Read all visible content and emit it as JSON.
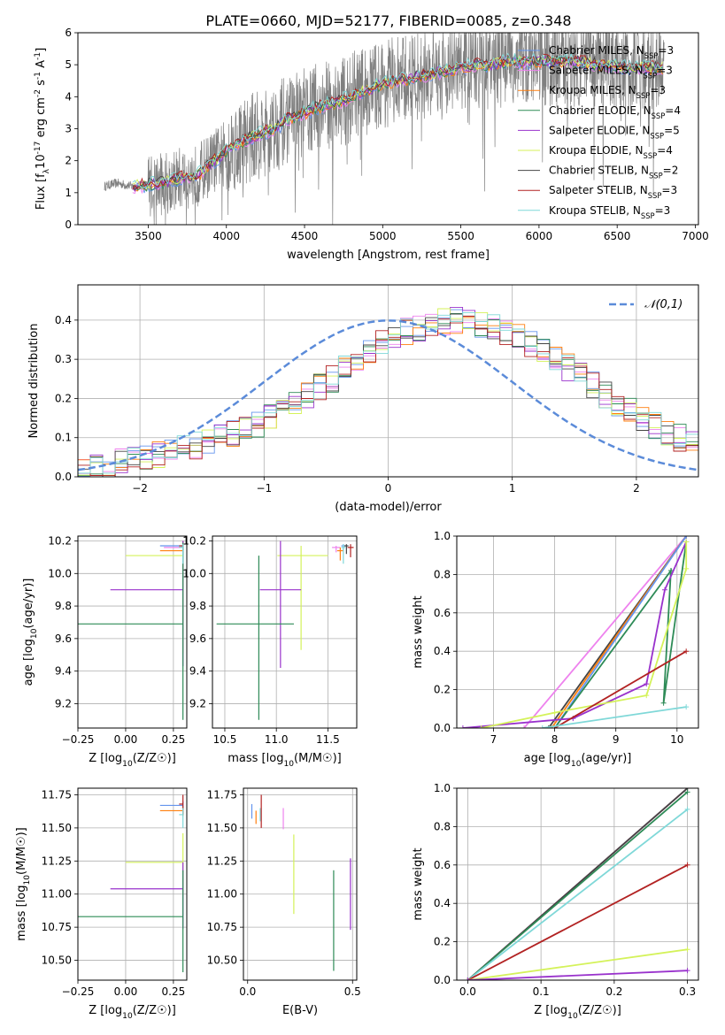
{
  "figure_title": "PLATE=0660, MJD=52177, FIBERID=0085, z=0.348",
  "colors": {
    "Chabrier MILES": "#6495ed",
    "Salpeter MILES": "#ee82ee",
    "Kroupa MILES": "#ff7f0e",
    "Chabrier ELODIE": "#2e8b57",
    "Salpeter ELODIE": "#9932cc",
    "Kroupa ELODIE": "#d4f25a",
    "Chabrier STELIB": "#444444",
    "Salpeter STELIB": "#b22222",
    "Kroupa STELIB": "#7fd8d8",
    "normal": "#5b8bd9"
  },
  "chart_data": [
    {
      "id": "spectrum",
      "type": "line",
      "xlabel": "wavelength [Angstrom, rest frame]",
      "ylabel": "Flux [f_λ10^-17 erg cm^-2 s^-1 A^-1]",
      "xlim": [
        3050,
        7020
      ],
      "ylim": [
        0,
        6
      ],
      "xticks": [
        3500,
        4000,
        4500,
        5000,
        5500,
        6000,
        6500,
        7000
      ],
      "yticks": [
        0,
        1,
        2,
        3,
        4,
        5,
        6
      ],
      "legend": "top-right",
      "legend_entries": [
        {
          "name": "Chabrier MILES, N_SSP=3",
          "lib": "Chabrier MILES"
        },
        {
          "name": "Salpeter MILES, N_SSP=3",
          "lib": "Salpeter MILES"
        },
        {
          "name": "Kroupa MILES, N_SSP=3",
          "lib": "Kroupa MILES"
        },
        {
          "name": "Chabrier ELODIE, N_SSP=4",
          "lib": "Chabrier ELODIE"
        },
        {
          "name": "Salpeter ELODIE, N_SSP=5",
          "lib": "Salpeter ELODIE"
        },
        {
          "name": "Kroupa ELODIE, N_SSP=4",
          "lib": "Kroupa ELODIE"
        },
        {
          "name": "Chabrier STELIB, N_SSP=2",
          "lib": "Chabrier STELIB"
        },
        {
          "name": "Salpeter STELIB, N_SSP=3",
          "lib": "Salpeter STELIB"
        },
        {
          "name": "Kroupa STELIB, N_SSP=3",
          "lib": "Kroupa STELIB"
        }
      ],
      "continuum": {
        "x": [
          3220,
          3300,
          3400,
          3500,
          3600,
          3700,
          3800,
          3900,
          4000,
          4100,
          4200,
          4300,
          4400,
          4500,
          4600,
          4700,
          4800,
          4900,
          5000,
          5100,
          5200,
          5300,
          5400,
          5500,
          5600,
          5700,
          5800,
          5900,
          6000,
          6200,
          6400,
          6600,
          6800
        ],
        "y": [
          1.2,
          1.3,
          1.2,
          1.25,
          1.3,
          1.45,
          1.5,
          1.9,
          2.3,
          2.6,
          2.8,
          3.0,
          3.3,
          3.5,
          3.7,
          3.8,
          4.0,
          4.2,
          4.4,
          4.5,
          4.6,
          4.7,
          4.8,
          4.9,
          5.0,
          5.0,
          5.1,
          5.1,
          5.1,
          5.1,
          5.0,
          4.9,
          4.9
        ]
      }
    },
    {
      "id": "residuals",
      "type": "step",
      "xlabel": "(data-model)/error",
      "ylabel": "Normed distribution",
      "xlim": [
        -2.5,
        2.5
      ],
      "ylim": [
        0,
        0.49
      ],
      "xticks": [
        -2,
        -1,
        0,
        1,
        2
      ],
      "yticks": [
        0.0,
        0.1,
        0.2,
        0.3,
        0.4
      ],
      "legend": "top-right",
      "legend_entries": [
        {
          "name": "𝒩(0,1)",
          "lib": "normal"
        }
      ],
      "bin_edges_start": -2.5,
      "bin_width": 0.1,
      "histogram_base": [
        0.02,
        0.025,
        0.03,
        0.04,
        0.045,
        0.05,
        0.055,
        0.06,
        0.07,
        0.08,
        0.09,
        0.1,
        0.11,
        0.12,
        0.135,
        0.15,
        0.17,
        0.19,
        0.21,
        0.23,
        0.25,
        0.275,
        0.3,
        0.32,
        0.34,
        0.355,
        0.37,
        0.38,
        0.39,
        0.395,
        0.4,
        0.395,
        0.39,
        0.38,
        0.37,
        0.355,
        0.34,
        0.32,
        0.3,
        0.28,
        0.26,
        0.235,
        0.21,
        0.19,
        0.17,
        0.15,
        0.13,
        0.115,
        0.1,
        0.09
      ],
      "gaussian": {
        "mean": 0,
        "sigma": 1
      }
    },
    {
      "id": "age_vs_Z",
      "type": "errorbar",
      "xlabel": "Z [log10(Z/Z☉)]",
      "ylabel": "age  [log10(age/yr)]",
      "xlim": [
        -0.25,
        0.32
      ],
      "ylim": [
        9.05,
        10.23
      ],
      "xticks": [
        -0.25,
        0.0,
        0.25
      ],
      "yticks": [
        9.2,
        9.4,
        9.6,
        9.8,
        10.0,
        10.2
      ],
      "points": [
        {
          "lib": "Chabrier MILES",
          "x": 0.3,
          "xerr": [
            0.12,
            0.0
          ],
          "y": 10.17,
          "yerr": [
            0.03,
            0.01
          ]
        },
        {
          "lib": "Salpeter MILES",
          "x": 0.3,
          "xerr": [
            0.1,
            0.0
          ],
          "y": 10.16,
          "yerr": [
            0.03,
            0.01
          ]
        },
        {
          "lib": "Kroupa MILES",
          "x": 0.3,
          "xerr": [
            0.12,
            0.0
          ],
          "y": 10.14,
          "yerr": [
            0.04,
            0.02
          ]
        },
        {
          "lib": "Salpeter STELIB",
          "x": 0.3,
          "xerr": [
            0.02,
            0.0
          ],
          "y": 10.17,
          "yerr": [
            0.08,
            0.03
          ]
        },
        {
          "lib": "Chabrier STELIB",
          "x": 0.3,
          "xerr": [
            0.02,
            0.0
          ],
          "y": 10.16,
          "yerr": [
            0.05,
            0.02
          ]
        },
        {
          "lib": "Kroupa ELODIE",
          "x": 0.3,
          "xerr": [
            0.3,
            0.0
          ],
          "y": 10.11,
          "yerr": [
            0.6,
            0.07
          ]
        },
        {
          "lib": "Salpeter ELODIE",
          "x": 0.3,
          "xerr": [
            0.38,
            0.0
          ],
          "y": 9.9,
          "yerr": [
            0.47,
            0.3
          ]
        },
        {
          "lib": "Chabrier ELODIE",
          "x": 0.3,
          "xerr": [
            0.55,
            0.0
          ],
          "y": 9.69,
          "yerr": [
            0.59,
            0.5
          ]
        },
        {
          "lib": "Kroupa STELIB",
          "x": 0.3,
          "xerr": [
            0.02,
            0.0
          ],
          "y": 10.16,
          "yerr": [
            0.1,
            0.02
          ]
        }
      ]
    },
    {
      "id": "age_vs_mass",
      "type": "errorbar",
      "xlabel": "mass [log10(M/M☉)]",
      "ylabel": "",
      "xlim": [
        10.38,
        11.78
      ],
      "ylim": [
        9.05,
        10.23
      ],
      "xticks": [
        10.5,
        11.0,
        11.5
      ],
      "yticks": [
        9.2,
        9.4,
        9.6,
        9.8,
        10.0,
        10.2
      ],
      "points": [
        {
          "lib": "Chabrier MILES",
          "x": 11.65,
          "xerr": [
            0.02,
            0.02
          ],
          "y": 10.17,
          "yerr": [
            0.03,
            0.01
          ]
        },
        {
          "lib": "Salpeter MILES",
          "x": 11.58,
          "xerr": [
            0.04,
            0.04
          ],
          "y": 10.16,
          "yerr": [
            0.03,
            0.01
          ]
        },
        {
          "lib": "Kroupa MILES",
          "x": 11.62,
          "xerr": [
            0.03,
            0.03
          ],
          "y": 10.14,
          "yerr": [
            0.06,
            0.02
          ]
        },
        {
          "lib": "Salpeter STELIB",
          "x": 11.72,
          "xerr": [
            0.03,
            0.03
          ],
          "y": 10.16,
          "yerr": [
            0.06,
            0.02
          ]
        },
        {
          "lib": "Chabrier STELIB",
          "x": 11.68,
          "xerr": [
            0.02,
            0.02
          ],
          "y": 10.17,
          "yerr": [
            0.05,
            0.01
          ]
        },
        {
          "lib": "Kroupa ELODIE",
          "x": 11.24,
          "xerr": [
            0.23,
            0.26
          ],
          "y": 10.11,
          "yerr": [
            0.58,
            0.06
          ]
        },
        {
          "lib": "Salpeter ELODIE",
          "x": 11.04,
          "xerr": [
            0.2,
            0.2
          ],
          "y": 9.9,
          "yerr": [
            0.48,
            0.3
          ]
        },
        {
          "lib": "Chabrier ELODIE",
          "x": 10.83,
          "xerr": [
            0.41,
            0.34
          ],
          "y": 9.69,
          "yerr": [
            0.59,
            0.42
          ]
        },
        {
          "lib": "Kroupa STELIB",
          "x": 11.65,
          "xerr": [
            0.02,
            0.02
          ],
          "y": 10.16,
          "yerr": [
            0.1,
            0.02
          ]
        }
      ]
    },
    {
      "id": "massweight_vs_age",
      "type": "line",
      "xlabel": "age  [log10(age/yr)]",
      "ylabel": "mass weight",
      "xlim": [
        6.4,
        10.35
      ],
      "ylim": [
        0,
        1.0
      ],
      "xticks": [
        7,
        8,
        9,
        10
      ],
      "yticks": [
        0.0,
        0.2,
        0.4,
        0.6,
        0.8,
        1.0
      ],
      "series": [
        {
          "lib": "Salpeter MILES",
          "x": [
            7.5,
            10.15
          ],
          "y": [
            0.0,
            1.0
          ]
        },
        {
          "lib": "Chabrier STELIB",
          "x": [
            7.9,
            10.15
          ],
          "y": [
            0.0,
            1.0
          ]
        },
        {
          "lib": "Kroupa MILES",
          "x": [
            7.95,
            10.15
          ],
          "y": [
            0.0,
            1.0
          ]
        },
        {
          "lib": "Chabrier MILES",
          "x": [
            8.0,
            10.15
          ],
          "y": [
            0.0,
            1.0
          ]
        },
        {
          "lib": "Chabrier ELODIE",
          "x": [
            8.0,
            9.9,
            9.78,
            10.15
          ],
          "y": [
            0.0,
            0.82,
            0.13,
            0.97
          ]
        },
        {
          "lib": "Salpeter ELODIE",
          "x": [
            6.5,
            8.3,
            9.5,
            9.8,
            10.15
          ],
          "y": [
            0.0,
            0.05,
            0.23,
            0.72,
            0.97
          ]
        },
        {
          "lib": "Kroupa ELODIE",
          "x": [
            6.8,
            8.0,
            9.5,
            10.15,
            10.15
          ],
          "y": [
            0.0,
            0.08,
            0.17,
            0.83,
            0.97
          ]
        },
        {
          "lib": "Salpeter STELIB",
          "x": [
            8.0,
            10.15
          ],
          "y": [
            0.0,
            0.4
          ]
        },
        {
          "lib": "Kroupa STELIB",
          "x": [
            7.8,
            10.15
          ],
          "y": [
            0.0,
            0.11
          ]
        }
      ]
    },
    {
      "id": "mass_vs_Z",
      "type": "errorbar",
      "xlabel": "Z [log10(Z/Z☉)]",
      "ylabel": "mass [log10(M/M☉)]",
      "xlim": [
        -0.25,
        0.32
      ],
      "ylim": [
        10.35,
        11.8
      ],
      "xticks": [
        -0.25,
        0.0,
        0.25
      ],
      "yticks": [
        10.5,
        10.75,
        11.0,
        11.25,
        11.5,
        11.75
      ],
      "points": [
        {
          "lib": "Chabrier MILES",
          "x": 0.3,
          "xerr": [
            0.12,
            0.0
          ],
          "y": 11.67,
          "yerr": [
            0.03,
            0.03
          ]
        },
        {
          "lib": "Kroupa MILES",
          "x": 0.3,
          "xerr": [
            0.12,
            0.0
          ],
          "y": 11.63,
          "yerr": [
            0.04,
            0.03
          ]
        },
        {
          "lib": "Salpeter STELIB",
          "x": 0.3,
          "xerr": [
            0.02,
            0.0
          ],
          "y": 11.68,
          "yerr": [
            0.08,
            0.07
          ]
        },
        {
          "lib": "Kroupa STELIB",
          "x": 0.3,
          "xerr": [
            0.02,
            0.0
          ],
          "y": 11.6,
          "yerr": [
            0.1,
            0.05
          ]
        },
        {
          "lib": "Kroupa ELODIE",
          "x": 0.3,
          "xerr": [
            0.3,
            0.0
          ],
          "y": 11.24,
          "yerr": [
            0.25,
            0.22
          ]
        },
        {
          "lib": "Salpeter ELODIE",
          "x": 0.3,
          "xerr": [
            0.38,
            0.0
          ],
          "y": 11.04,
          "yerr": [
            0.3,
            0.2
          ]
        },
        {
          "lib": "Chabrier ELODIE",
          "x": 0.3,
          "xerr": [
            0.55,
            0.0
          ],
          "y": 10.83,
          "yerr": [
            0.42,
            0.35
          ]
        }
      ]
    },
    {
      "id": "mass_vs_ebv",
      "type": "errorbar",
      "xlabel": "E(B-V)",
      "ylabel": "",
      "xlim": [
        -0.02,
        0.52
      ],
      "ylim": [
        10.35,
        11.8
      ],
      "xticks": [
        0.0,
        0.5
      ],
      "yticks": [
        10.5,
        10.75,
        11.0,
        11.25,
        11.5,
        11.75
      ],
      "points": [
        {
          "lib": "Chabrier MILES",
          "x": 0.02,
          "xerr": [
            0.0,
            0.0
          ],
          "y": 11.63,
          "yerr": [
            0.06,
            0.05
          ]
        },
        {
          "lib": "Kroupa MILES",
          "x": 0.04,
          "xerr": [
            0.0,
            0.0
          ],
          "y": 11.58,
          "yerr": [
            0.05,
            0.05
          ]
        },
        {
          "lib": "Kroupa STELIB",
          "x": 0.06,
          "xerr": [
            0.0,
            0.0
          ],
          "y": 11.6,
          "yerr": [
            0.05,
            0.05
          ]
        },
        {
          "lib": "Salpeter STELIB",
          "x": 0.065,
          "xerr": [
            0.0,
            0.0
          ],
          "y": 11.6,
          "yerr": [
            0.1,
            0.15
          ]
        },
        {
          "lib": "Salpeter MILES",
          "x": 0.17,
          "xerr": [
            0.0,
            0.0
          ],
          "y": 11.57,
          "yerr": [
            0.08,
            0.08
          ]
        },
        {
          "lib": "Kroupa ELODIE",
          "x": 0.22,
          "xerr": [
            0.0,
            0.0
          ],
          "y": 11.15,
          "yerr": [
            0.3,
            0.3
          ]
        },
        {
          "lib": "Chabrier ELODIE",
          "x": 0.41,
          "xerr": [
            0.0,
            0.0
          ],
          "y": 10.8,
          "yerr": [
            0.38,
            0.38
          ]
        },
        {
          "lib": "Salpeter ELODIE",
          "x": 0.49,
          "xerr": [
            0.0,
            0.0
          ],
          "y": 11.0,
          "yerr": [
            0.27,
            0.27
          ]
        }
      ]
    },
    {
      "id": "massweight_vs_Z",
      "type": "line",
      "xlabel": "Z [log10(Z/Z☉)]",
      "ylabel": "mass weight",
      "xlim": [
        -0.015,
        0.315
      ],
      "ylim": [
        0,
        1.0
      ],
      "xticks": [
        0.0,
        0.1,
        0.2,
        0.3
      ],
      "yticks": [
        0.0,
        0.2,
        0.4,
        0.6,
        0.8,
        1.0
      ],
      "series": [
        {
          "lib": "Chabrier MILES",
          "x": [
            0.0,
            0.3
          ],
          "y": [
            0.0,
            1.0
          ]
        },
        {
          "lib": "Kroupa MILES",
          "x": [
            0.0,
            0.3
          ],
          "y": [
            0.0,
            1.0
          ]
        },
        {
          "lib": "Salpeter MILES",
          "x": [
            0.0,
            0.3
          ],
          "y": [
            0.0,
            1.0
          ]
        },
        {
          "lib": "Chabrier STELIB",
          "x": [
            0.0,
            0.3
          ],
          "y": [
            0.0,
            1.0
          ]
        },
        {
          "lib": "Chabrier ELODIE",
          "x": [
            0.0,
            0.3
          ],
          "y": [
            0.0,
            0.98
          ]
        },
        {
          "lib": "Kroupa STELIB",
          "x": [
            0.0,
            0.3
          ],
          "y": [
            0.0,
            0.89
          ]
        },
        {
          "lib": "Salpeter STELIB",
          "x": [
            0.0,
            0.3
          ],
          "y": [
            0.0,
            0.6
          ]
        },
        {
          "lib": "Kroupa ELODIE",
          "x": [
            0.0,
            0.3
          ],
          "y": [
            0.0,
            0.16
          ]
        },
        {
          "lib": "Salpeter ELODIE",
          "x": [
            0.0,
            0.3
          ],
          "y": [
            0.0,
            0.05
          ]
        }
      ]
    }
  ]
}
